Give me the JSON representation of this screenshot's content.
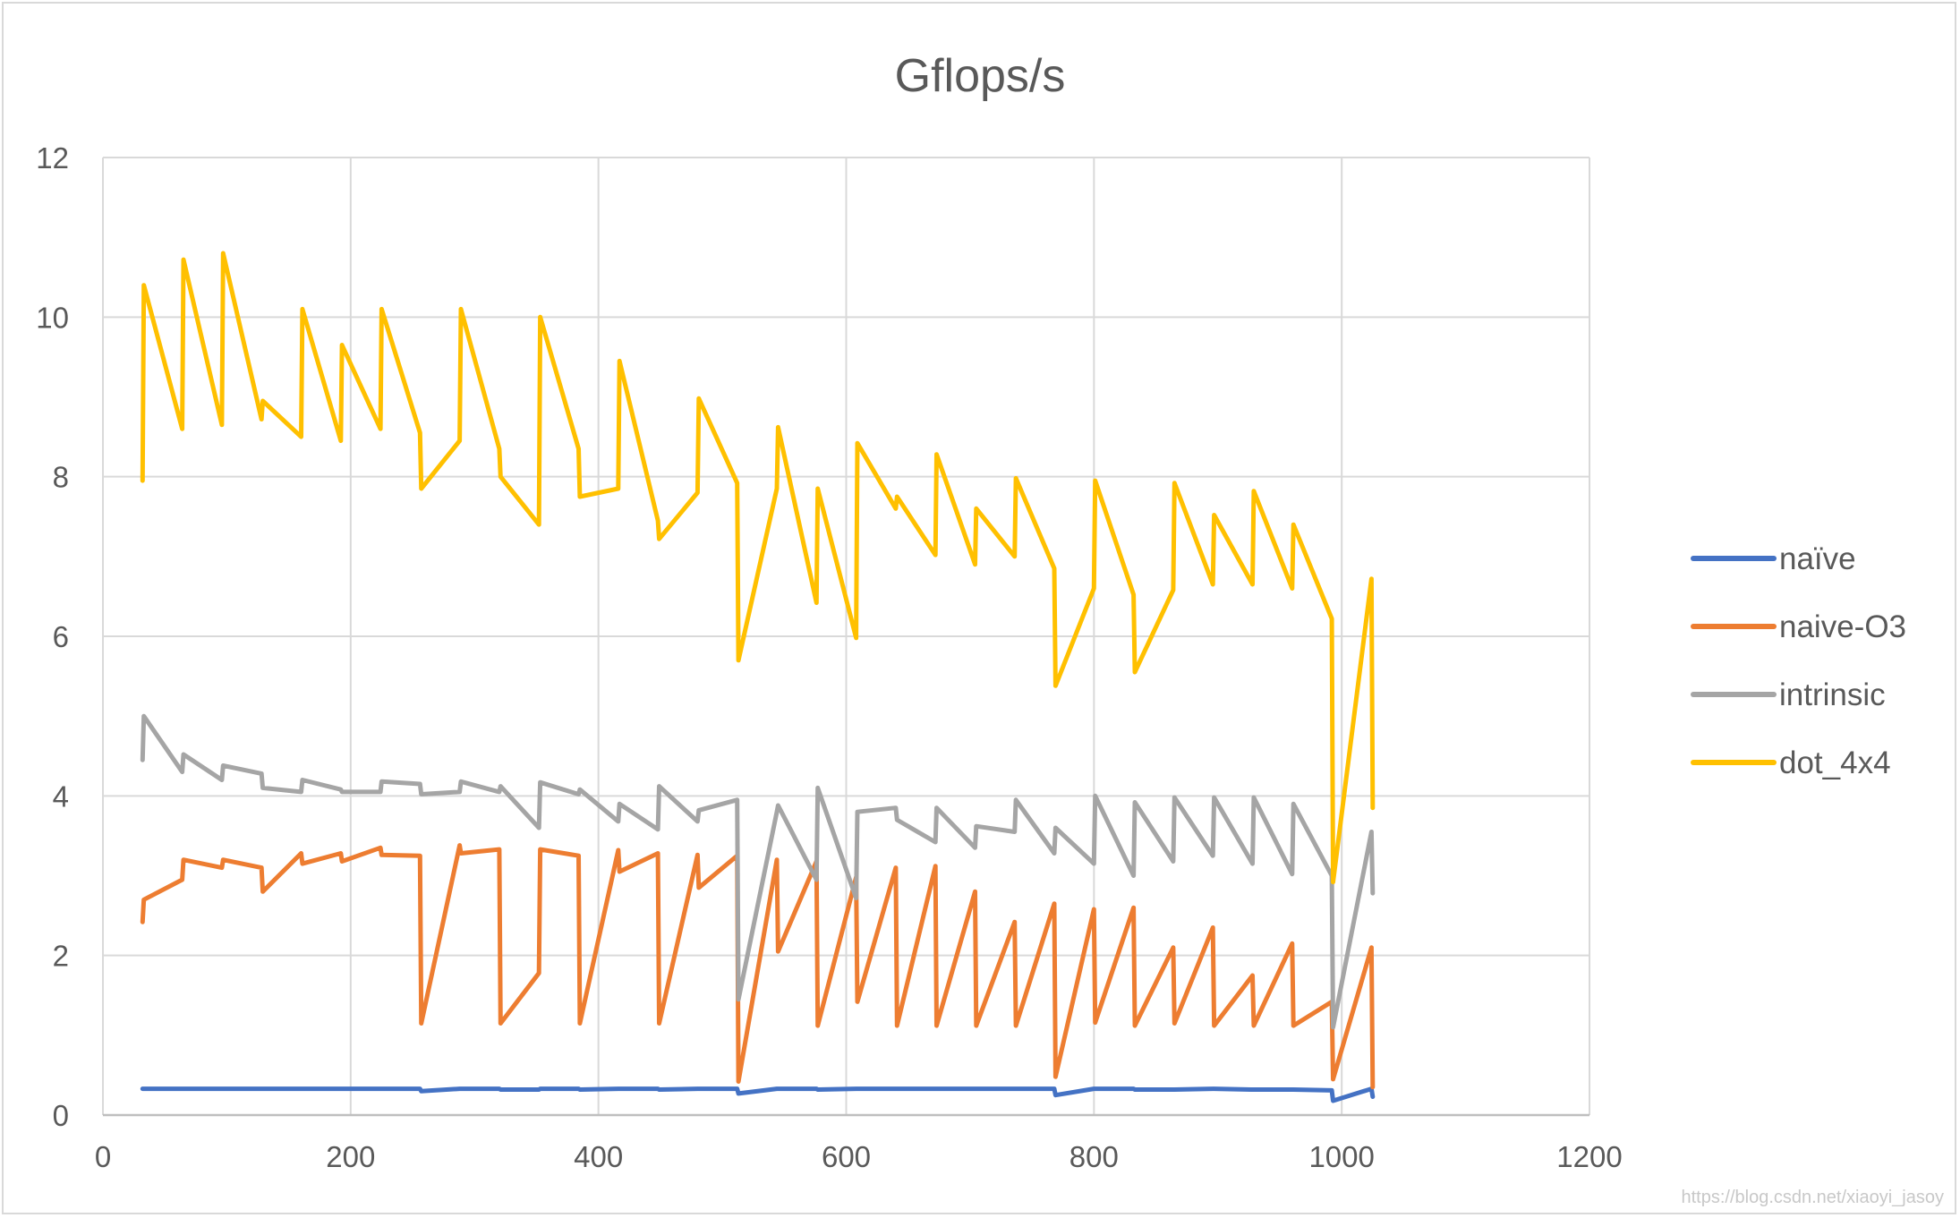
{
  "chart_data": {
    "type": "line",
    "title": "Gflops/s",
    "xlabel": "",
    "ylabel": "",
    "xlim": [
      0,
      1200
    ],
    "ylim": [
      0,
      12
    ],
    "x_ticks": [
      "0",
      "200",
      "400",
      "600",
      "800",
      "1000",
      "1200"
    ],
    "y_ticks": [
      "0",
      "2",
      "4",
      "6",
      "8",
      "10",
      "12"
    ],
    "grid": true,
    "legend_position": "right",
    "x": [
      32,
      33,
      64,
      65,
      96,
      97,
      128,
      129,
      160,
      161,
      192,
      193,
      224,
      225,
      256,
      257,
      288,
      289,
      320,
      321,
      352,
      353,
      384,
      385,
      416,
      417,
      448,
      449,
      480,
      481,
      512,
      513,
      544,
      545,
      576,
      577,
      608,
      609,
      640,
      641,
      672,
      673,
      704,
      705,
      736,
      737,
      768,
      769,
      800,
      801,
      832,
      833,
      864,
      865,
      896,
      897,
      928,
      929,
      960,
      961,
      992,
      993,
      1024,
      1025
    ],
    "series": [
      {
        "name": "naïve",
        "color": "#4472C4",
        "values": [
          0.33,
          0.33,
          0.33,
          0.33,
          0.33,
          0.33,
          0.33,
          0.33,
          0.33,
          0.33,
          0.33,
          0.33,
          0.33,
          0.33,
          0.33,
          0.3,
          0.33,
          0.33,
          0.33,
          0.32,
          0.32,
          0.33,
          0.33,
          0.32,
          0.33,
          0.33,
          0.33,
          0.32,
          0.33,
          0.33,
          0.33,
          0.27,
          0.33,
          0.33,
          0.33,
          0.32,
          0.33,
          0.33,
          0.33,
          0.33,
          0.33,
          0.33,
          0.33,
          0.33,
          0.33,
          0.33,
          0.33,
          0.25,
          0.33,
          0.33,
          0.33,
          0.32,
          0.32,
          0.32,
          0.33,
          0.33,
          0.32,
          0.32,
          0.32,
          0.32,
          0.31,
          0.18,
          0.33,
          0.23
        ]
      },
      {
        "name": "naive-O3",
        "color": "#ED7D31",
        "values": [
          2.42,
          2.7,
          2.95,
          3.2,
          3.1,
          3.2,
          3.1,
          2.8,
          3.28,
          3.15,
          3.28,
          3.18,
          3.35,
          3.26,
          3.25,
          1.15,
          3.38,
          3.28,
          3.33,
          1.15,
          1.78,
          3.33,
          3.25,
          1.15,
          3.32,
          3.05,
          3.28,
          1.15,
          3.26,
          2.85,
          3.25,
          0.42,
          3.2,
          2.05,
          3.18,
          1.12,
          2.98,
          1.42,
          3.1,
          1.12,
          3.12,
          1.12,
          2.8,
          1.12,
          2.42,
          1.12,
          2.65,
          0.48,
          2.58,
          1.16,
          2.6,
          1.12,
          2.1,
          1.15,
          2.35,
          1.12,
          1.75,
          1.12,
          2.15,
          1.12,
          1.42,
          0.45,
          2.1,
          0.35
        ]
      },
      {
        "name": "intrinsic",
        "color": "#A5A5A5",
        "values": [
          4.45,
          5.0,
          4.3,
          4.52,
          4.2,
          4.38,
          4.28,
          4.1,
          4.05,
          4.2,
          4.08,
          4.05,
          4.05,
          4.18,
          4.15,
          4.02,
          4.05,
          4.18,
          4.05,
          4.12,
          3.6,
          4.17,
          4.02,
          4.08,
          3.68,
          3.9,
          3.58,
          4.12,
          3.68,
          3.82,
          3.95,
          1.45,
          3.8,
          3.88,
          2.95,
          4.1,
          2.72,
          3.8,
          3.85,
          3.7,
          3.42,
          3.85,
          3.35,
          3.62,
          3.55,
          3.95,
          3.28,
          3.6,
          3.15,
          4.0,
          3.0,
          3.92,
          3.18,
          3.98,
          3.25,
          3.98,
          3.15,
          3.98,
          3.02,
          3.9,
          3.0,
          1.1,
          3.55,
          2.78
        ]
      },
      {
        "name": "dot_4x4",
        "color": "#FFC000",
        "values": [
          7.95,
          10.4,
          8.6,
          10.72,
          8.65,
          10.8,
          8.72,
          8.95,
          8.5,
          10.1,
          8.45,
          9.65,
          8.6,
          10.1,
          8.55,
          7.85,
          8.45,
          10.1,
          8.35,
          8.0,
          7.4,
          10.0,
          8.35,
          7.75,
          7.85,
          9.45,
          7.45,
          7.22,
          7.8,
          8.98,
          7.92,
          5.7,
          7.85,
          8.62,
          6.42,
          7.85,
          5.98,
          8.42,
          7.6,
          7.75,
          7.02,
          8.28,
          6.9,
          7.6,
          7.0,
          7.98,
          6.85,
          5.38,
          6.6,
          7.95,
          6.52,
          5.55,
          6.58,
          7.92,
          6.65,
          7.52,
          6.65,
          7.82,
          6.6,
          7.4,
          6.22,
          2.92,
          6.72,
          3.85
        ]
      }
    ],
    "watermark": "https://blog.csdn.net/xiaoyi_jasoy"
  }
}
